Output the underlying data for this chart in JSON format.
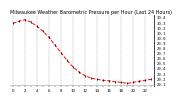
{
  "title": "Milwaukee Weather Barometric Pressure per Hour (Last 24 Hours)",
  "background_color": "#ffffff",
  "plot_bg_color": "#ffffff",
  "line_color": "#ff0000",
  "tick_color": "#000000",
  "grid_color": "#999999",
  "hours": [
    0,
    1,
    2,
    3,
    4,
    5,
    6,
    7,
    8,
    9,
    10,
    11,
    12,
    13,
    14,
    15,
    16,
    17,
    18,
    19,
    20,
    21,
    22,
    23
  ],
  "pressure": [
    30.28,
    30.32,
    30.35,
    30.3,
    30.22,
    30.12,
    30.0,
    29.85,
    29.7,
    29.55,
    29.42,
    29.32,
    29.25,
    29.2,
    29.18,
    29.16,
    29.15,
    29.13,
    29.12,
    29.1,
    29.12,
    29.14,
    29.16,
    29.18
  ],
  "ylim": [
    29.05,
    30.45
  ],
  "yticks": [
    29.1,
    29.2,
    29.3,
    29.4,
    29.5,
    29.6,
    29.7,
    29.8,
    29.9,
    30.0,
    30.1,
    30.2,
    30.3,
    30.4
  ],
  "ytick_labels": [
    "29.1",
    "29.2",
    "29.3",
    "29.4",
    "29.5",
    "29.6",
    "29.7",
    "29.8",
    "29.9",
    "30.0",
    "30.1",
    "30.2",
    "30.3",
    "30.4"
  ],
  "xtick_labels": [
    "0",
    "",
    "2",
    "",
    "4",
    "",
    "6",
    "",
    "8",
    "",
    "10",
    "",
    "12",
    "",
    "14",
    "",
    "16",
    "",
    "18",
    "",
    "20",
    "",
    "22",
    ""
  ],
  "title_fontsize": 3.5,
  "tick_fontsize": 2.8,
  "line_width": 0.7,
  "marker_size": 2.0,
  "vgrid_positions": [
    0,
    2,
    4,
    6,
    8,
    10,
    12,
    14,
    16,
    18,
    20,
    22
  ]
}
